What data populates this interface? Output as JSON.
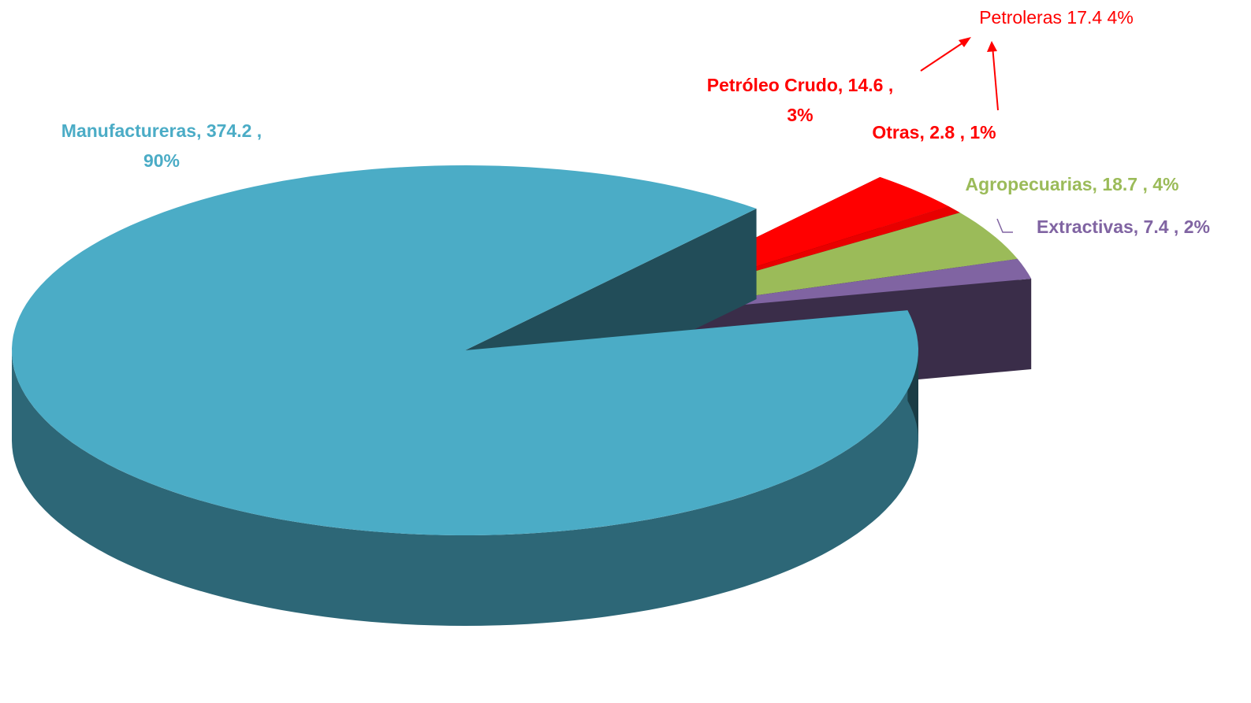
{
  "chart_data": {
    "type": "pie3d",
    "categories": [
      "Petróleo Crudo",
      "Otras",
      "Agropecuarias",
      "Extractivas",
      "Manufactureras"
    ],
    "values": [
      14.6,
      2.8,
      18.7,
      7.4,
      374.2
    ],
    "value_labels": [
      [
        "Petróleo Crudo,  14.6 ,",
        "3%"
      ],
      [
        "Otras,  2.8 , 1%"
      ],
      [
        "Agropecuarias,  18.7 , 4%"
      ],
      [
        "Extractivas,  7.4 , 2%"
      ],
      [
        "Manufactureras,  374.2 ,",
        "90%"
      ]
    ],
    "colors": [
      "#ff0000",
      "#e80000",
      "#9bbb59",
      "#8064a2",
      "#4bacc6"
    ],
    "exploded": [
      true,
      true,
      true,
      true,
      false
    ],
    "annotations": [
      {
        "text": "Petroleras 17.4  4%",
        "color": "#ff0000"
      }
    ]
  }
}
